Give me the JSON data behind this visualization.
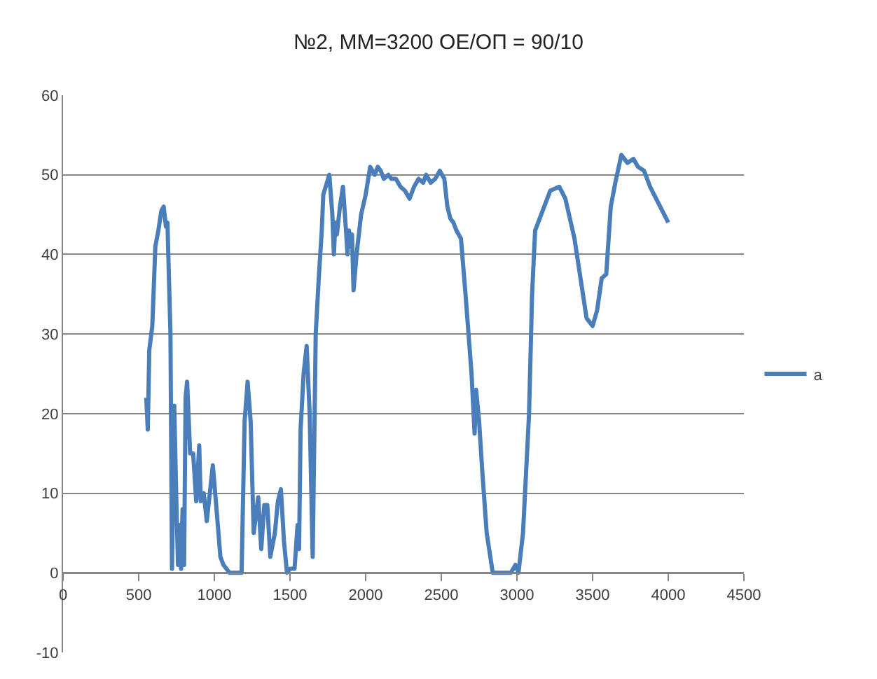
{
  "chart_data": {
    "type": "line",
    "title": "№2, ММ=3200 ОЕ/ОП = 90/10",
    "x": [
      550,
      560,
      570,
      590,
      610,
      630,
      650,
      665,
      680,
      690,
      710,
      720,
      735,
      750,
      760,
      770,
      780,
      790,
      800,
      810,
      820,
      840,
      860,
      880,
      900,
      910,
      930,
      950,
      970,
      990,
      1010,
      1040,
      1060,
      1100,
      1180,
      1200,
      1220,
      1240,
      1260,
      1290,
      1310,
      1330,
      1350,
      1370,
      1400,
      1420,
      1440,
      1460,
      1480,
      1500,
      1530,
      1550,
      1560,
      1570,
      1590,
      1610,
      1630,
      1650,
      1670,
      1690,
      1710,
      1720,
      1760,
      1780,
      1790,
      1800,
      1810,
      1830,
      1850,
      1870,
      1880,
      1890,
      1900,
      1910,
      1920,
      1940,
      1970,
      2000,
      2030,
      2060,
      2080,
      2100,
      2120,
      2150,
      2170,
      2200,
      2230,
      2260,
      2290,
      2320,
      2350,
      2380,
      2400,
      2430,
      2460,
      2490,
      2520,
      2540,
      2560,
      2580,
      2600,
      2630,
      2660,
      2700,
      2720,
      2730,
      2750,
      2770,
      2800,
      2840,
      2900,
      2960,
      2990,
      3010,
      3040,
      3080,
      3100,
      3120,
      3160,
      3220,
      3280,
      3320,
      3380,
      3420,
      3460,
      3500,
      3530,
      3560,
      3590,
      3620,
      3650,
      3690,
      3730,
      3770,
      3800,
      3840,
      3880,
      3920,
      3960,
      4000
    ],
    "series": [
      {
        "name": "a",
        "color": "#4a7ebb",
        "values": [
          22,
          18,
          28,
          31,
          41,
          43,
          45.5,
          46,
          43.5,
          44,
          30,
          0.5,
          21,
          8,
          1,
          6,
          0.5,
          8,
          1,
          22,
          24,
          15,
          15,
          9,
          16,
          9,
          10,
          6.5,
          10,
          13.5,
          9,
          2,
          1,
          0,
          0,
          19,
          24,
          19,
          5,
          9.5,
          3,
          8.5,
          8.5,
          2,
          5,
          9,
          10.5,
          4,
          0,
          0.5,
          0.5,
          6,
          3,
          18,
          25,
          28.5,
          20,
          2,
          30,
          37,
          43,
          47.5,
          50,
          45,
          40,
          44,
          42.5,
          46,
          48.5,
          43,
          40,
          43,
          41,
          42.5,
          35.5,
          40,
          45,
          47.5,
          51,
          50,
          51,
          50.5,
          49.5,
          50,
          49.5,
          49.5,
          48.5,
          48,
          47,
          48.5,
          49.5,
          49,
          50,
          49,
          49.5,
          50.5,
          49.5,
          46,
          44.5,
          44,
          43,
          42,
          35,
          25,
          17.5,
          23,
          19,
          13,
          5,
          0,
          0,
          0,
          1,
          0,
          5,
          20,
          35,
          43,
          45,
          48,
          48.5,
          47,
          42,
          37,
          32,
          31,
          33,
          37,
          37.5,
          46,
          49,
          52.5,
          51.5,
          52,
          51,
          50.5,
          48.5,
          47,
          45.5,
          44
        ]
      }
    ],
    "xlim": [
      0,
      4500
    ],
    "xticks": [
      0,
      500,
      1000,
      1500,
      2000,
      2500,
      3000,
      3500,
      4000,
      4500
    ],
    "ylim": [
      -10,
      60
    ],
    "yticks": [
      -10,
      0,
      10,
      20,
      30,
      40,
      50,
      60
    ],
    "grid": "y",
    "legend": "right",
    "marker": "none",
    "line_style": "solid"
  }
}
